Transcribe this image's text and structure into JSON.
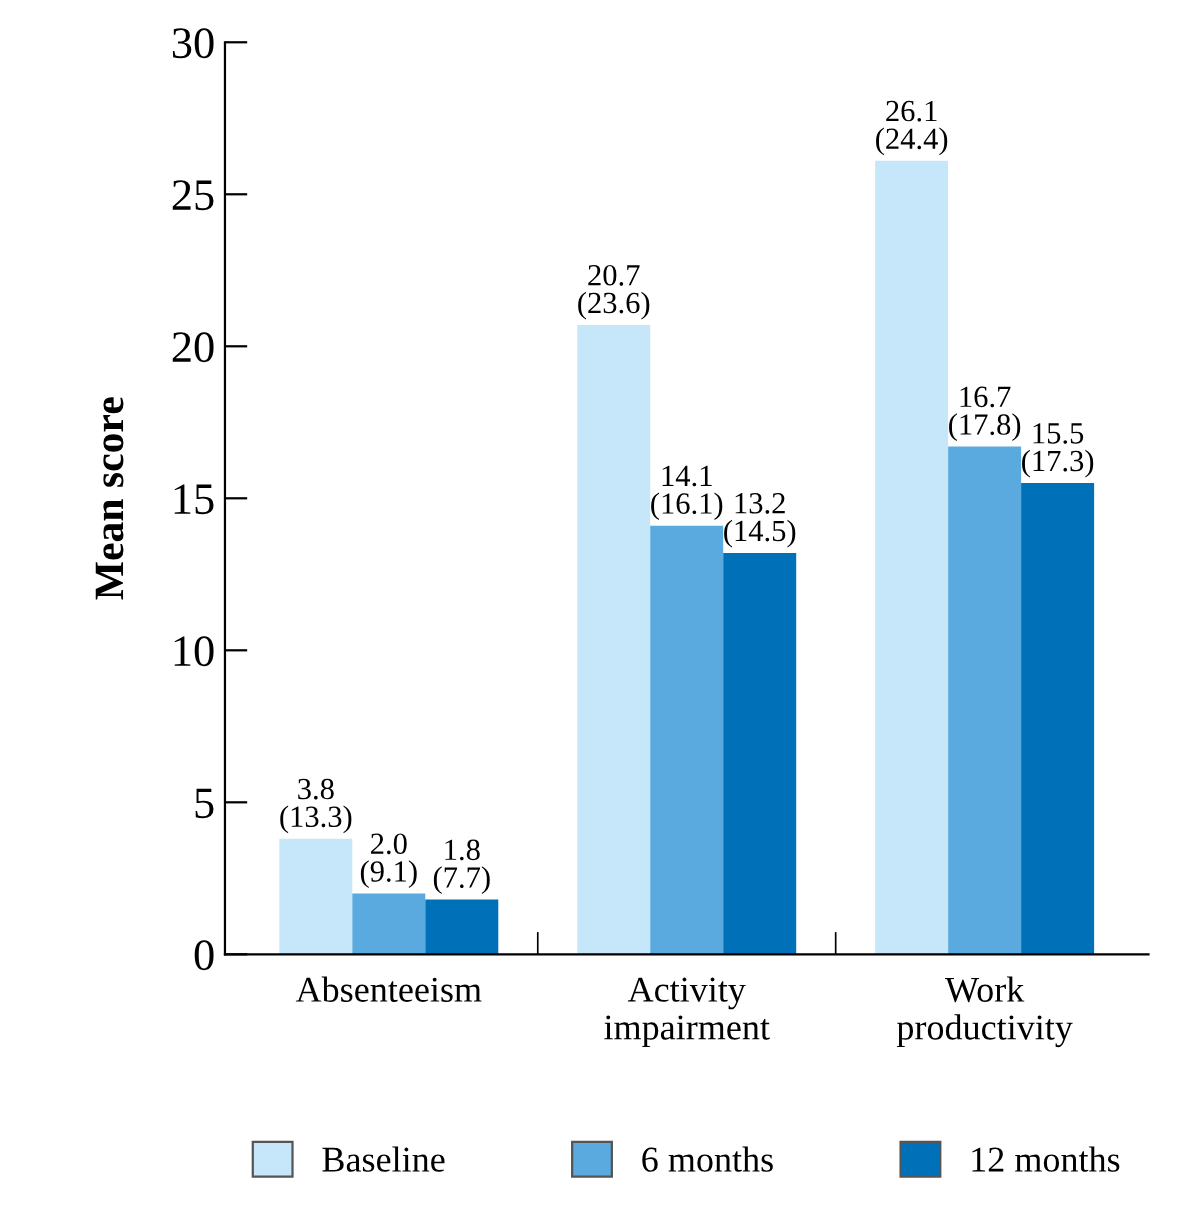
{
  "chart_data": {
    "type": "bar",
    "ylabel": "Mean score",
    "categories": [
      "Absenteeism",
      "Activity\nimpairment",
      "Work\nproductivity"
    ],
    "series": [
      {
        "name": "Baseline",
        "color": "#c6e7f9",
        "values": [
          3.8,
          20.7,
          26.1
        ],
        "value_labels": [
          "3.8\n(13.3)",
          "20.7\n(23.6)",
          "26.1\n(24.4)"
        ]
      },
      {
        "name": "6 months",
        "color": "#5aaadf",
        "values": [
          2.0,
          14.1,
          16.7
        ],
        "value_labels": [
          "2.0\n(9.1)",
          "14.1\n(16.1)",
          "16.7\n(17.8)"
        ]
      },
      {
        "name": "12 months",
        "color": "#0070b9",
        "values": [
          1.8,
          13.2,
          15.5
        ],
        "value_labels": [
          "1.8\n(7.7)",
          "13.2\n(14.5)",
          "15.5\n(17.3)"
        ]
      }
    ],
    "ylim": [
      0,
      30
    ],
    "yticks": [
      0,
      5,
      10,
      15,
      20,
      25,
      30
    ],
    "grid": false,
    "legend": "bottom"
  }
}
